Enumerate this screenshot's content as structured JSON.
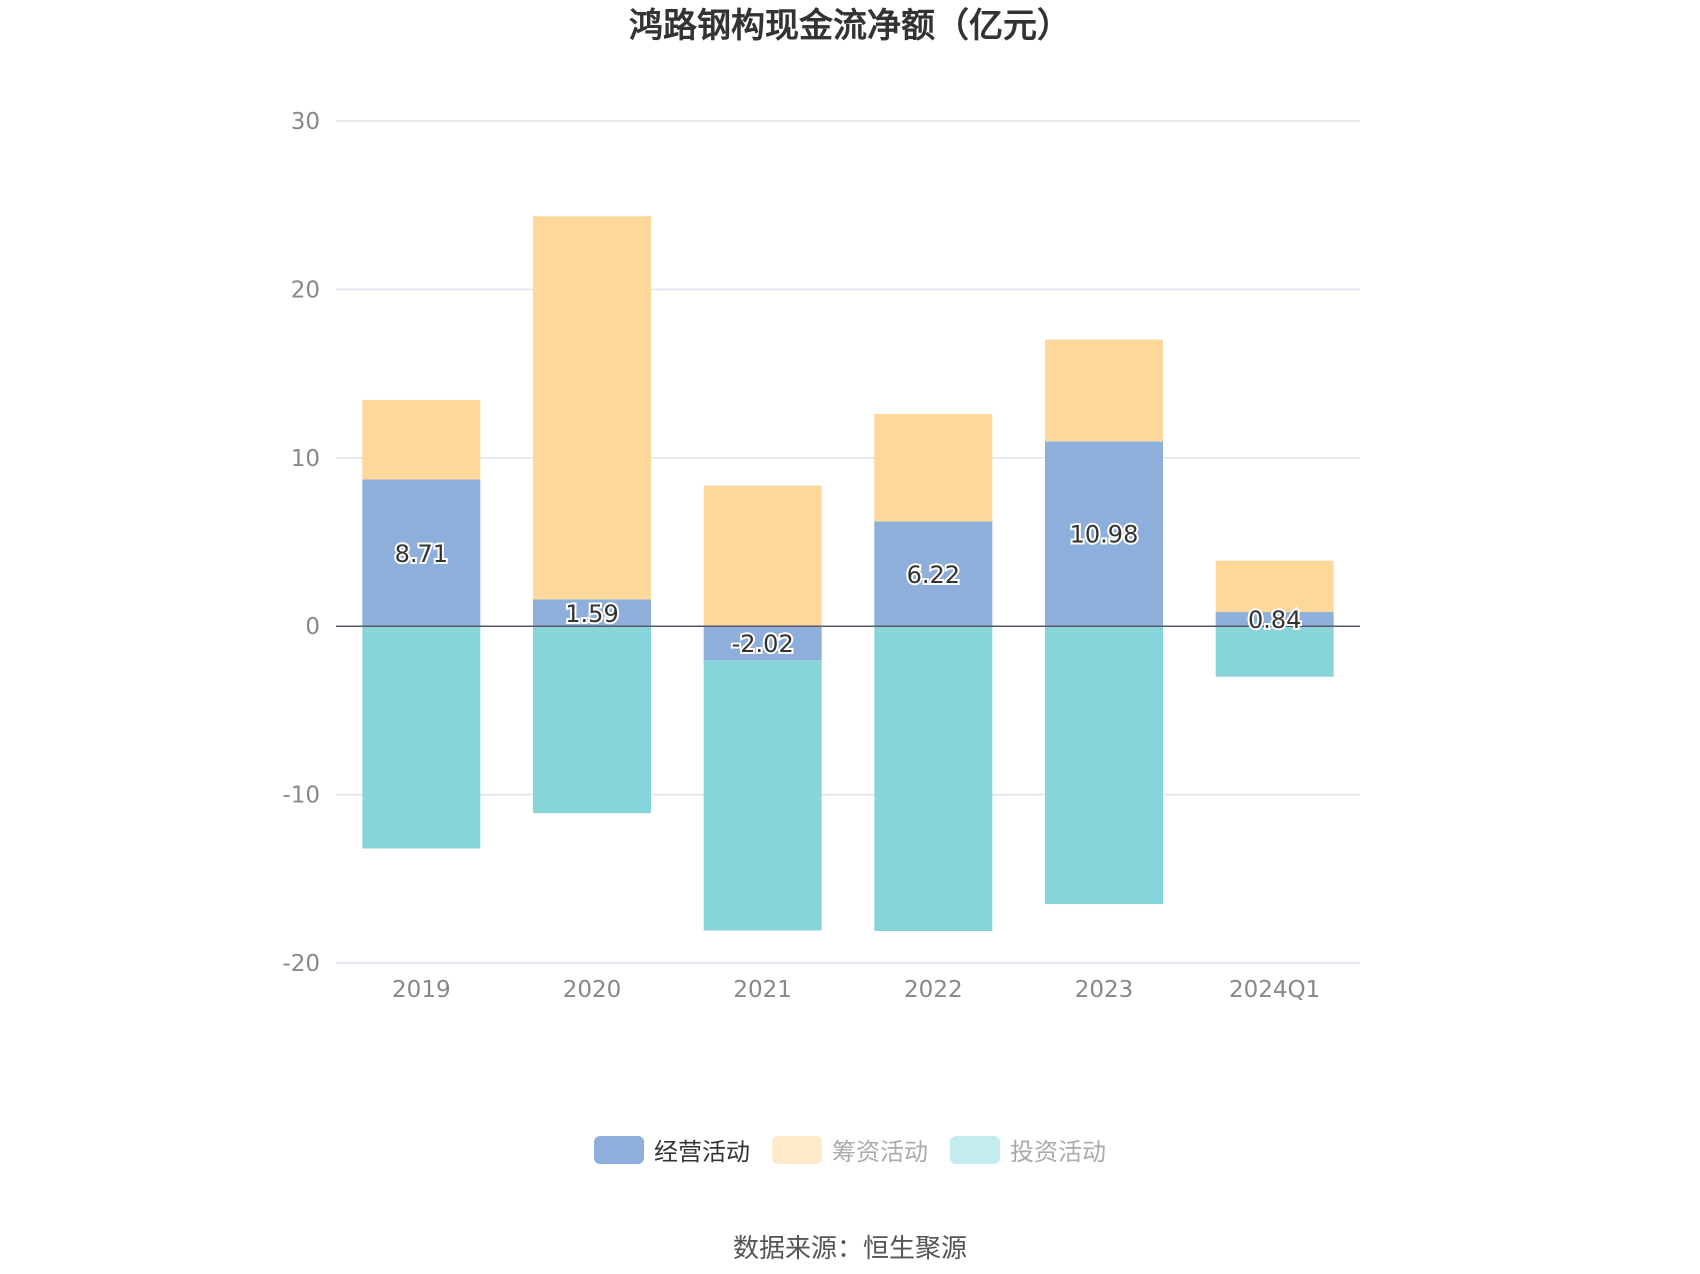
{
  "chart_data": {
    "type": "bar",
    "stacked": true,
    "title": "鸿路钢构现金流净额（亿元）",
    "categories": [
      "2019",
      "2020",
      "2021",
      "2022",
      "2023",
      "2024Q1"
    ],
    "series": [
      {
        "name": "经营活动",
        "color": "#8eaedb",
        "values": [
          8.71,
          1.59,
          -2.02,
          6.22,
          10.98,
          0.84
        ],
        "labeled": true
      },
      {
        "name": "筹资活动",
        "color": "#fed89a",
        "values": [
          4.73,
          22.75,
          8.35,
          6.38,
          6.04,
          3.05
        ],
        "labeled": false
      },
      {
        "name": "投资活动",
        "color": "#88d5d9",
        "values": [
          -13.2,
          -11.1,
          -16.05,
          -18.1,
          -16.5,
          -3.0
        ],
        "labeled": false
      }
    ],
    "yticks": [
      30,
      20,
      10,
      0,
      -10,
      -20
    ],
    "ylim": [
      -20,
      30
    ],
    "grid": true,
    "legend_position": "bottom"
  },
  "legend": {
    "items": [
      {
        "label": "经营活动",
        "color": "#8eaedb"
      },
      {
        "label": "筹资活动",
        "color": "#fed89a",
        "swatch": "#feeacb"
      },
      {
        "label": "投资活动",
        "color": "#88d5d9",
        "swatch": "#c2ecee"
      }
    ]
  },
  "source": "数据来源：恒生聚源"
}
